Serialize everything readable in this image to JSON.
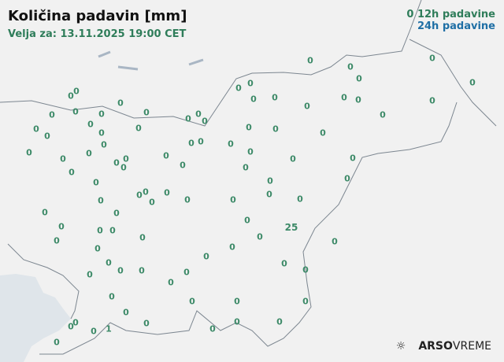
{
  "header": {
    "title": "Količina padavin [mm]",
    "valid": "Velja za: 13.11.2025 19:00 CET"
  },
  "legend": {
    "sample": "0",
    "h12": "12h padavine",
    "h24": "24h padavine",
    "color_12h": "#2f7d5a",
    "color_24h": "#1f6fa5"
  },
  "logo": {
    "icon": "weather-sun-rain-icon",
    "brand": "ARSO",
    "product": "VREME"
  },
  "stations": [
    "0",
    "0",
    "0",
    "0",
    "0",
    "0",
    "0",
    "0",
    "0",
    "0",
    "0",
    "0",
    "0",
    "0",
    "0",
    "0",
    "0",
    "0",
    "0",
    "0",
    "0",
    "0",
    "0",
    "0",
    "0",
    "0",
    "0",
    "0",
    "0",
    "0",
    "0",
    "0",
    "0",
    "0",
    "0",
    "0",
    "0",
    "0",
    "0",
    "0",
    "0",
    "0",
    "0",
    "0",
    "0",
    "0",
    "0",
    "0",
    "0",
    "0",
    "0",
    "0",
    "0",
    "0",
    "0",
    "0",
    "0",
    "0",
    "0",
    "0",
    "0",
    "0",
    "0",
    "0",
    "0",
    "0",
    "0",
    "0",
    "0",
    "25",
    "0",
    "0",
    "0",
    "0",
    "0",
    "0",
    "0",
    "0",
    "0",
    "0",
    "0",
    "0",
    "0",
    "0",
    "0",
    "0",
    "0",
    "0",
    "0",
    "0",
    "0",
    "0",
    "0",
    "1",
    "0",
    "0",
    "0"
  ]
}
